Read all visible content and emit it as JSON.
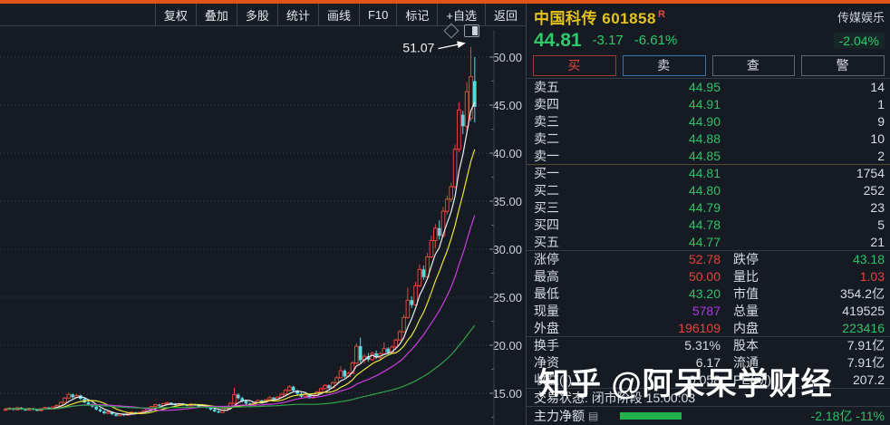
{
  "toolbar": {
    "items": [
      "复权",
      "叠加",
      "多股",
      "统计",
      "画线",
      "F10",
      "标记",
      "+自选",
      "返回"
    ]
  },
  "stock": {
    "name": "中国科传",
    "code": "601858",
    "flag": "R",
    "price": "44.81",
    "change": "-3.17",
    "change_pct": "-6.61%",
    "sector": "传媒娱乐",
    "sector_change": "-2.04%"
  },
  "trade_buttons": {
    "buy": "买",
    "sell": "卖",
    "query": "查",
    "alert": "警"
  },
  "order_book": {
    "asks": [
      {
        "label": "卖五",
        "price": "44.95",
        "vol": "14"
      },
      {
        "label": "卖四",
        "price": "44.91",
        "vol": "1"
      },
      {
        "label": "卖三",
        "price": "44.90",
        "vol": "9"
      },
      {
        "label": "卖二",
        "price": "44.88",
        "vol": "10"
      },
      {
        "label": "卖一",
        "price": "44.85",
        "vol": "2"
      }
    ],
    "bids": [
      {
        "label": "买一",
        "price": "44.81",
        "vol": "1754"
      },
      {
        "label": "买二",
        "price": "44.80",
        "vol": "252"
      },
      {
        "label": "买三",
        "price": "44.79",
        "vol": "23"
      },
      {
        "label": "买四",
        "price": "44.78",
        "vol": "5"
      },
      {
        "label": "买五",
        "price": "44.77",
        "vol": "21"
      }
    ]
  },
  "stats": [
    {
      "l1": "涨停",
      "v1": "52.78",
      "l2": "跌停",
      "v2": "43.18"
    },
    {
      "l1": "最高",
      "v1": "50.00",
      "l2": "量比",
      "v2": "1.03"
    },
    {
      "l1": "最低",
      "v1": "43.20",
      "l2": "市值",
      "v2": "354.2亿"
    },
    {
      "l1": "现量",
      "v1": "5787",
      "l2": "总量",
      "v2": "419525"
    },
    {
      "l1": "外盘",
      "v1": "196109",
      "l2": "内盘",
      "v2": "223416"
    },
    {
      "l1": "换手",
      "v1": "5.31%",
      "l2": "股本",
      "v2": "7.91亿"
    },
    {
      "l1": "净资",
      "v1": "6.17",
      "l2": "流通",
      "v2": "7.91亿"
    },
    {
      "l1": "收益(-)",
      "v1": "0.058",
      "l2": "PE(动)",
      "v2": "207.2"
    }
  ],
  "status_line": "交易状态: 闭市阶段 15:00:03",
  "main_flow": {
    "label": "主力净额",
    "value": "-2.18亿 -11%"
  },
  "watermark": "知乎 @阿呆呆学财经",
  "colors": {
    "accent_top_bar": "#e25318",
    "background": "#161a23",
    "grid": "#3a4253",
    "up_red": "#e8453c",
    "down_cyan": "#5ad8e0",
    "price_green": "#2fc06a",
    "value_red": "#e0463c",
    "value_purple": "#a93ae3",
    "title_yellow": "#e3c41e",
    "flow_bar_green": "#22b14c"
  },
  "chart_data": {
    "type": "candlestick",
    "symbol": "中国科传 601858",
    "timeframe": "daily",
    "ylim": [
      11.5,
      53.5
    ],
    "yticks": [
      50,
      45,
      40,
      35,
      30,
      25,
      20,
      15
    ],
    "grid": "dotted-horizontal",
    "up_color": "#e8453c",
    "down_color": "#5ad8e0",
    "annotation": {
      "label": "51.07",
      "candle_index": 118
    },
    "ma_series": [
      {
        "name": "MA5",
        "period": 5,
        "color": "#eceef2"
      },
      {
        "name": "MA10",
        "period": 10,
        "color": "#e8e33a"
      },
      {
        "name": "MA20",
        "period": 20,
        "color": "#c93ee0"
      },
      {
        "name": "MA60",
        "period": 60,
        "color": "#2fa34a"
      }
    ],
    "candles": [
      [
        13.3,
        13.45,
        13.15,
        13.35
      ],
      [
        13.35,
        13.55,
        13.25,
        13.45
      ],
      [
        13.45,
        13.5,
        13.2,
        13.28
      ],
      [
        13.28,
        13.55,
        13.22,
        13.5
      ],
      [
        13.5,
        13.58,
        13.28,
        13.34
      ],
      [
        13.34,
        13.42,
        13.15,
        13.24
      ],
      [
        13.24,
        13.5,
        13.18,
        13.42
      ],
      [
        13.42,
        13.48,
        13.22,
        13.3
      ],
      [
        13.3,
        13.38,
        13.1,
        13.2
      ],
      [
        13.2,
        13.45,
        13.14,
        13.38
      ],
      [
        13.38,
        13.6,
        13.3,
        13.52
      ],
      [
        13.52,
        13.58,
        13.3,
        13.4
      ],
      [
        13.4,
        13.65,
        13.34,
        13.58
      ],
      [
        13.58,
        13.85,
        13.5,
        13.72
      ],
      [
        13.72,
        14.15,
        13.65,
        14.05
      ],
      [
        14.05,
        14.6,
        13.98,
        14.5
      ],
      [
        14.5,
        15.05,
        14.4,
        14.88
      ],
      [
        14.88,
        14.95,
        14.45,
        14.6
      ],
      [
        14.6,
        14.92,
        14.5,
        14.78
      ],
      [
        14.78,
        14.85,
        14.3,
        14.42
      ],
      [
        14.42,
        14.55,
        13.95,
        14.05
      ],
      [
        14.05,
        14.2,
        13.7,
        13.82
      ],
      [
        13.82,
        13.95,
        13.5,
        13.62
      ],
      [
        13.62,
        13.7,
        13.22,
        13.32
      ],
      [
        13.32,
        13.45,
        13.02,
        13.12
      ],
      [
        13.12,
        13.22,
        12.8,
        12.92
      ],
      [
        12.92,
        13.15,
        12.85,
        13.06
      ],
      [
        13.06,
        13.1,
        12.72,
        12.82
      ],
      [
        12.82,
        12.95,
        12.58,
        12.66
      ],
      [
        12.66,
        12.92,
        12.6,
        12.84
      ],
      [
        12.84,
        12.9,
        12.62,
        12.72
      ],
      [
        12.72,
        13.0,
        12.66,
        12.92
      ],
      [
        12.92,
        13.12,
        12.85,
        13.02
      ],
      [
        13.02,
        13.08,
        12.78,
        12.88
      ],
      [
        12.88,
        13.1,
        12.82,
        13.02
      ],
      [
        13.02,
        13.25,
        12.96,
        13.16
      ],
      [
        13.16,
        13.5,
        13.1,
        13.42
      ],
      [
        13.42,
        13.7,
        13.35,
        13.62
      ],
      [
        13.62,
        13.92,
        13.55,
        13.82
      ],
      [
        13.82,
        13.9,
        13.6,
        13.72
      ],
      [
        13.72,
        14.0,
        13.65,
        13.92
      ],
      [
        13.92,
        14.12,
        13.85,
        14.02
      ],
      [
        14.02,
        14.08,
        13.78,
        13.88
      ],
      [
        13.88,
        13.98,
        13.68,
        13.76
      ],
      [
        13.76,
        14.0,
        13.7,
        13.92
      ],
      [
        13.92,
        13.98,
        13.72,
        13.8
      ],
      [
        13.8,
        13.88,
        13.62,
        13.7
      ],
      [
        13.7,
        13.95,
        13.65,
        13.86
      ],
      [
        13.86,
        13.92,
        13.68,
        13.76
      ],
      [
        13.76,
        13.82,
        13.52,
        13.6
      ],
      [
        13.6,
        13.8,
        13.54,
        13.72
      ],
      [
        13.72,
        13.78,
        13.42,
        13.52
      ],
      [
        13.52,
        13.62,
        13.22,
        13.32
      ],
      [
        13.32,
        13.42,
        13.02,
        13.12
      ],
      [
        13.12,
        13.28,
        12.92,
        13.0
      ],
      [
        13.0,
        13.32,
        12.95,
        13.22
      ],
      [
        13.22,
        13.65,
        13.15,
        13.55
      ],
      [
        13.55,
        14.1,
        13.48,
        13.95
      ],
      [
        13.95,
        15.6,
        13.9,
        14.85
      ],
      [
        14.85,
        15.0,
        14.35,
        14.5
      ],
      [
        14.5,
        14.65,
        14.05,
        14.18
      ],
      [
        14.18,
        14.3,
        13.8,
        13.92
      ],
      [
        13.92,
        14.05,
        13.62,
        13.74
      ],
      [
        13.74,
        14.12,
        13.68,
        14.02
      ],
      [
        14.02,
        14.35,
        13.95,
        14.25
      ],
      [
        14.25,
        14.32,
        13.98,
        14.08
      ],
      [
        14.08,
        14.42,
        14.0,
        14.32
      ],
      [
        14.32,
        14.68,
        14.25,
        14.55
      ],
      [
        14.55,
        14.62,
        14.28,
        14.38
      ],
      [
        14.38,
        14.72,
        14.3,
        14.6
      ],
      [
        14.6,
        15.02,
        14.52,
        14.9
      ],
      [
        14.9,
        15.45,
        14.82,
        15.3
      ],
      [
        15.3,
        15.85,
        15.2,
        15.68
      ],
      [
        15.68,
        15.78,
        15.15,
        15.28
      ],
      [
        15.28,
        15.4,
        14.85,
        14.95
      ],
      [
        14.95,
        15.1,
        14.55,
        14.66
      ],
      [
        14.66,
        14.95,
        14.58,
        14.85
      ],
      [
        14.85,
        14.92,
        14.42,
        14.52
      ],
      [
        14.52,
        14.88,
        14.45,
        14.78
      ],
      [
        14.78,
        15.25,
        14.7,
        15.12
      ],
      [
        15.12,
        15.6,
        15.05,
        15.48
      ],
      [
        15.48,
        15.95,
        15.4,
        15.82
      ],
      [
        15.82,
        15.92,
        15.45,
        15.55
      ],
      [
        15.55,
        16.25,
        15.48,
        16.1
      ],
      [
        16.1,
        16.8,
        16.02,
        16.62
      ],
      [
        16.62,
        17.8,
        16.55,
        17.35
      ],
      [
        17.35,
        17.5,
        16.6,
        16.75
      ],
      [
        16.75,
        17.25,
        16.65,
        17.08
      ],
      [
        17.08,
        18.35,
        17.0,
        18.15
      ],
      [
        18.15,
        20.2,
        18.05,
        19.9
      ],
      [
        19.9,
        20.8,
        18.2,
        18.45
      ],
      [
        18.45,
        19.1,
        18.1,
        18.85
      ],
      [
        18.85,
        19.2,
        18.3,
        18.5
      ],
      [
        18.5,
        19.35,
        18.4,
        19.15
      ],
      [
        19.15,
        19.45,
        18.55,
        18.72
      ],
      [
        18.72,
        19.3,
        18.42,
        19.1
      ],
      [
        19.1,
        20.3,
        19.0,
        19.65
      ],
      [
        19.65,
        19.8,
        19.05,
        19.25
      ],
      [
        19.25,
        19.95,
        19.15,
        19.82
      ],
      [
        19.82,
        20.7,
        19.72,
        20.55
      ],
      [
        20.55,
        21.6,
        20.45,
        21.4
      ],
      [
        21.4,
        23.2,
        21.3,
        22.9
      ],
      [
        22.9,
        26.0,
        22.75,
        24.7
      ],
      [
        24.7,
        25.1,
        23.9,
        24.2
      ],
      [
        24.2,
        26.6,
        24.1,
        26.2
      ],
      [
        26.2,
        28.4,
        26.05,
        27.9
      ],
      [
        27.9,
        28.3,
        26.8,
        27.1
      ],
      [
        27.1,
        29.6,
        27.0,
        29.2
      ],
      [
        29.2,
        31.4,
        29.05,
        30.9
      ],
      [
        30.9,
        32.6,
        30.1,
        32.2
      ],
      [
        32.2,
        33.0,
        31.0,
        31.4
      ],
      [
        31.4,
        34.4,
        31.25,
        33.95
      ],
      [
        33.95,
        35.6,
        33.6,
        35.2
      ],
      [
        35.2,
        36.9,
        34.9,
        36.5
      ],
      [
        36.5,
        40.9,
        36.3,
        40.4
      ],
      [
        40.4,
        45.3,
        40.1,
        44.5
      ],
      [
        44.0,
        44.4,
        42.0,
        42.8
      ],
      [
        42.8,
        47.4,
        42.3,
        46.4
      ],
      [
        43.6,
        51.07,
        43.3,
        47.98
      ],
      [
        47.5,
        50.0,
        43.2,
        44.81
      ]
    ]
  }
}
